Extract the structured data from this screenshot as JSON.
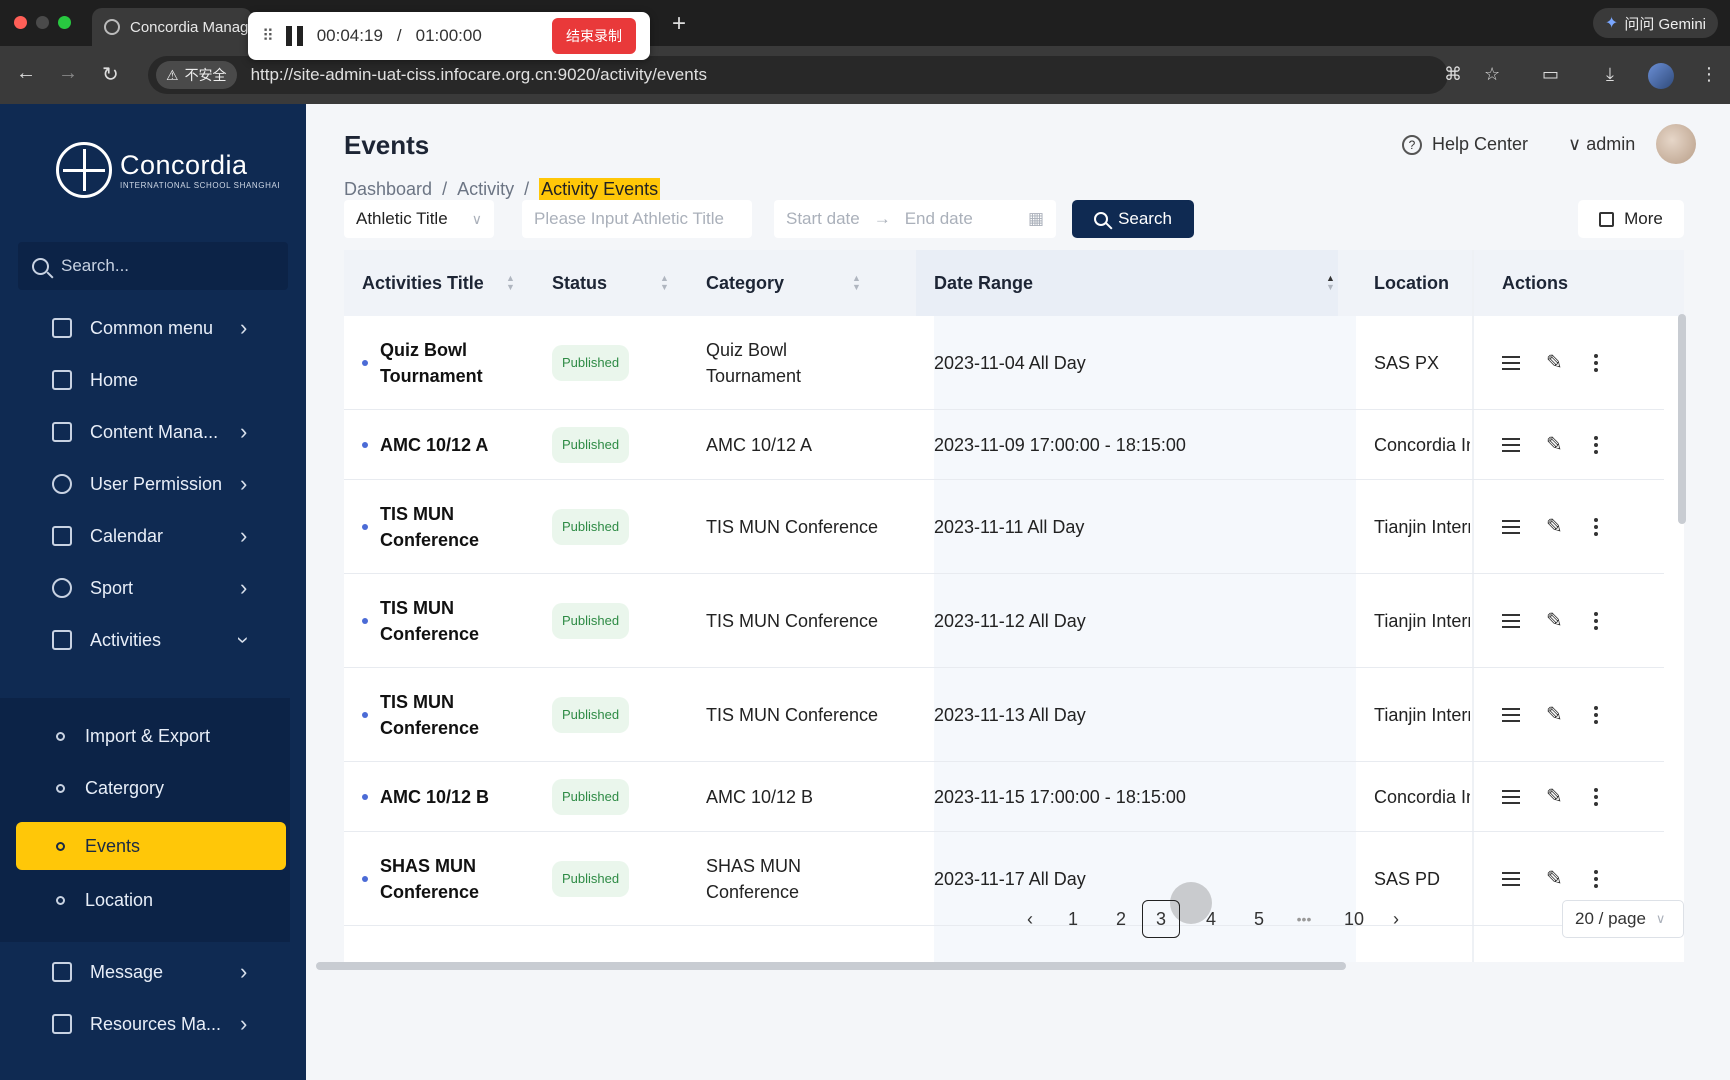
{
  "browser": {
    "tab_title": "Concordia Manag",
    "url": "http://site-admin-uat-ciss.infocare.org.cn:9020/activity/events",
    "insecure_label": "不安全",
    "gemini_label": "问问 Gemini"
  },
  "recorder": {
    "elapsed": "00:04:19",
    "separator": "/",
    "limit": "01:00:00",
    "stop_label": "结束录制"
  },
  "sidebar": {
    "logo_name": "Concordia",
    "logo_sub": "INTERNATIONAL SCHOOL SHANGHAI",
    "search_placeholder": "Search...",
    "items": [
      {
        "label": "Common menu"
      },
      {
        "label": "Home"
      },
      {
        "label": "Content Mana..."
      },
      {
        "label": "User Permission"
      },
      {
        "label": "Calendar"
      },
      {
        "label": "Sport"
      },
      {
        "label": "Activities"
      }
    ],
    "sub_items": [
      {
        "label": "Import & Export"
      },
      {
        "label": "Catergory"
      },
      {
        "label": "Events"
      },
      {
        "label": "Location"
      }
    ],
    "bottom_items": [
      {
        "label": "Message"
      },
      {
        "label": "Resources Ma..."
      }
    ]
  },
  "header": {
    "title": "Events",
    "help_label": "Help Center",
    "user_label": "admin"
  },
  "breadcrumb": {
    "items": [
      "Dashboard",
      "Activity",
      "Activity Events"
    ],
    "separator": "/"
  },
  "filters": {
    "type_select": "Athletic Title",
    "title_placeholder": "Please Input Athletic Title",
    "start_placeholder": "Start date",
    "end_placeholder": "End date",
    "search_label": "Search",
    "more_label": "More"
  },
  "table": {
    "columns": [
      "Activities Title",
      "Status",
      "Category",
      "Date Range",
      "Location",
      "Actions"
    ],
    "rows": [
      {
        "title_1": "Quiz Bowl",
        "title_2": "Tournament",
        "status": "Published",
        "category_1": "Quiz Bowl",
        "category_2": "Tournament",
        "date": "2023-11-04 All Day",
        "location": "SAS PX"
      },
      {
        "title_1": "AMC 10/12 A",
        "title_2": "",
        "status": "Published",
        "category_1": "AMC 10/12 A",
        "category_2": "",
        "date": "2023-11-09 17:00:00 - 18:15:00",
        "location": "Concordia Inte"
      },
      {
        "title_1": "TIS MUN",
        "title_2": "Conference",
        "status": "Published",
        "category_1": "TIS MUN Conference",
        "category_2": "",
        "date": "2023-11-11 All Day",
        "location": "Tianjin Interna"
      },
      {
        "title_1": "TIS MUN",
        "title_2": "Conference",
        "status": "Published",
        "category_1": "TIS MUN Conference",
        "category_2": "",
        "date": "2023-11-12 All Day",
        "location": "Tianjin Interna"
      },
      {
        "title_1": "TIS MUN",
        "title_2": "Conference",
        "status": "Published",
        "category_1": "TIS MUN Conference",
        "category_2": "",
        "date": "2023-11-13 All Day",
        "location": "Tianjin Interna"
      },
      {
        "title_1": "AMC 10/12 B",
        "title_2": "",
        "status": "Published",
        "category_1": "AMC 10/12 B",
        "category_2": "",
        "date": "2023-11-15 17:00:00 - 18:15:00",
        "location": "Concordia Inte"
      },
      {
        "title_1": "SHAS MUN",
        "title_2": "Conference",
        "status": "Published",
        "category_1": "SHAS MUN",
        "category_2": "Conference",
        "date": "2023-11-17 All Day",
        "location": "SAS PD"
      }
    ]
  },
  "pagination": {
    "pages": [
      "1",
      "2",
      "3",
      "4",
      "5",
      "10"
    ],
    "ellipsis": "•••",
    "current": "3",
    "per_page": "20 / page"
  }
}
